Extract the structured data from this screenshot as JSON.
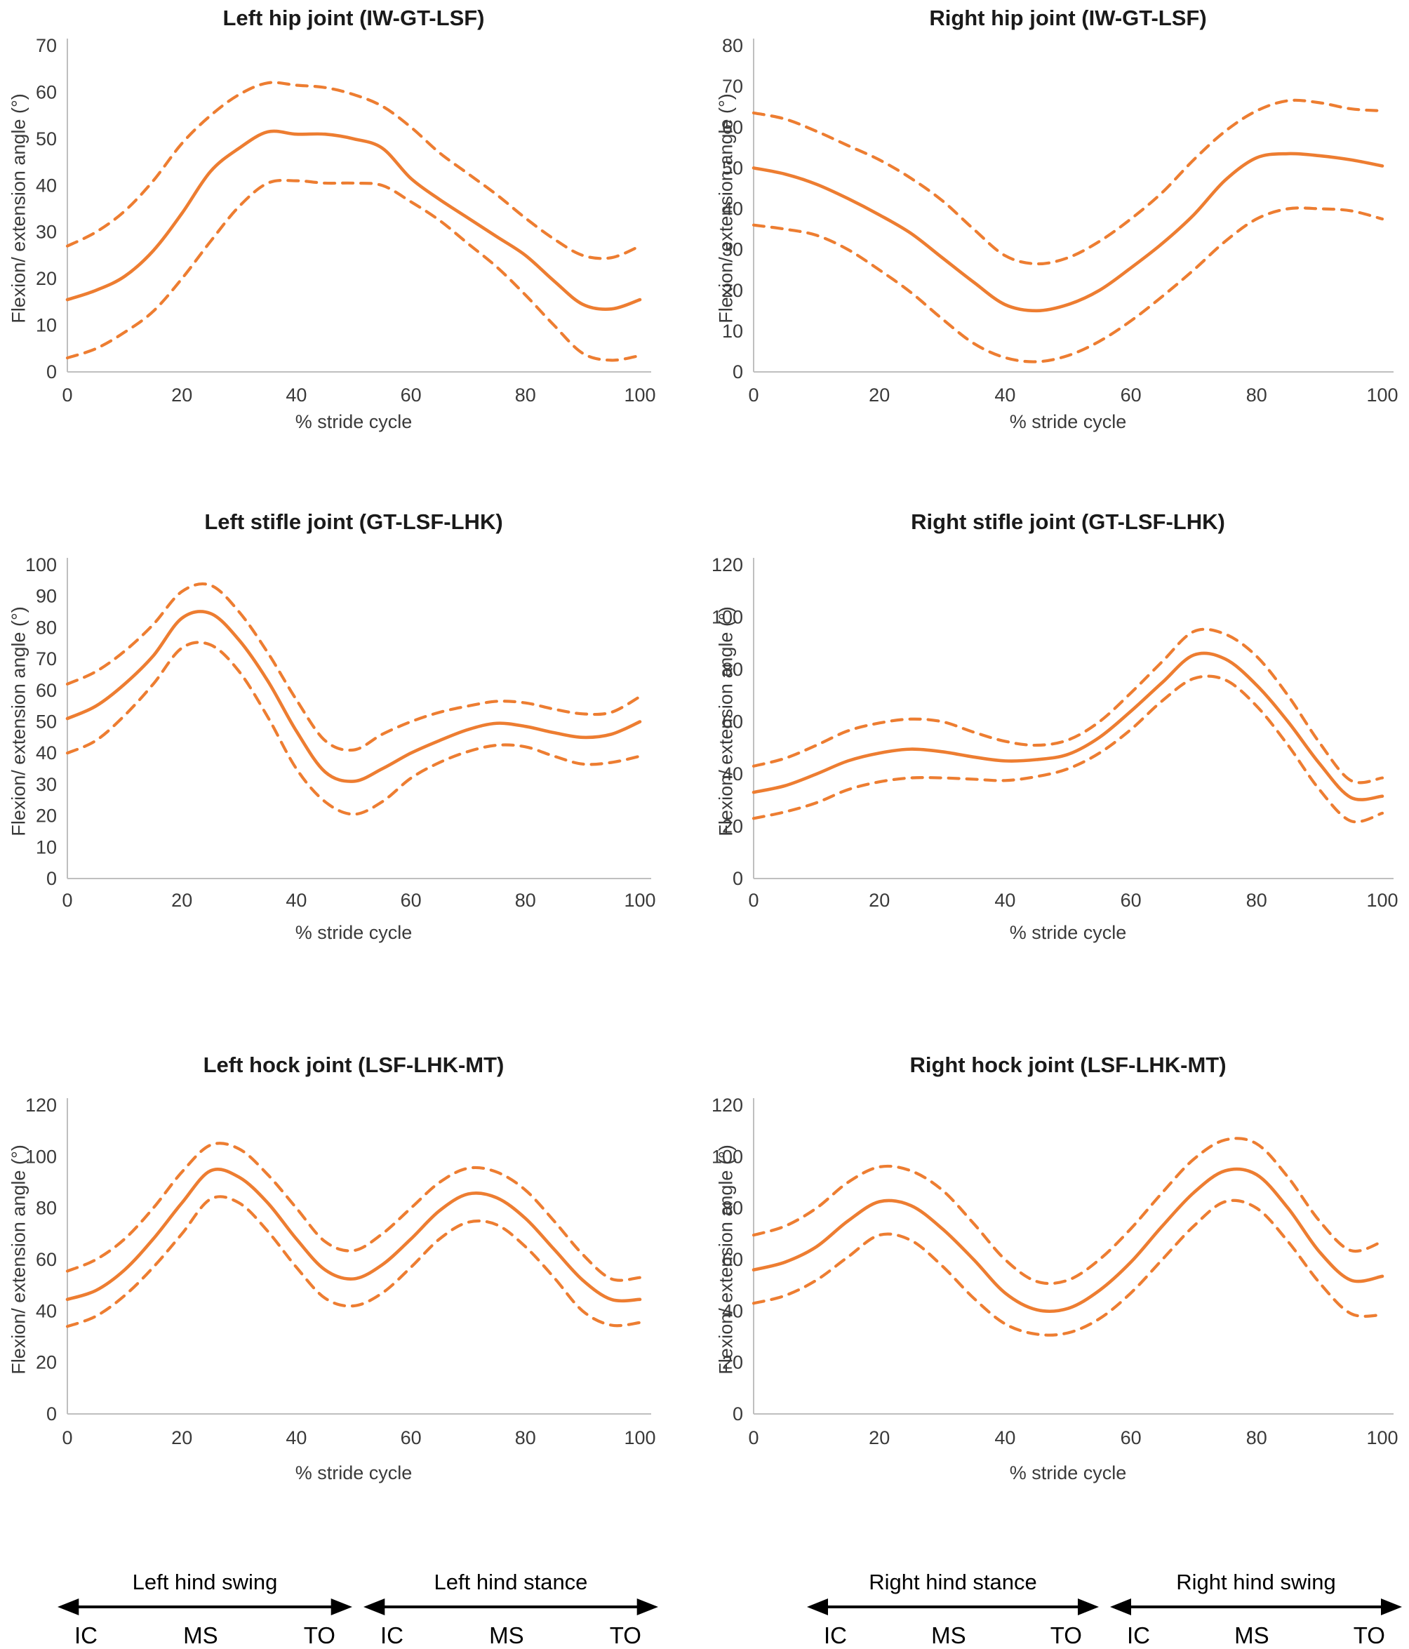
{
  "figure": {
    "xlabel": "% stride cycle",
    "ylabel": "Flexion/ extension angle (°)"
  },
  "colors": {
    "curve": "#ED7D31",
    "axis_line": "#BFBFBF",
    "tick_text": "#3A3A3A",
    "title_text": "#1A1A1A"
  },
  "chart_data": [
    {
      "type": "line",
      "title": "Left hip joint (IW-GT-LSF)",
      "xlabel": "% stride cycle",
      "ylabel": "Flexion/ extension angle (°)",
      "xlim": [
        0,
        100
      ],
      "ylim": [
        0,
        70
      ],
      "xticks": [
        0,
        20,
        40,
        60,
        80,
        100
      ],
      "yticks": [
        0,
        10,
        20,
        30,
        40,
        50,
        60,
        70
      ],
      "grid": false,
      "legend": "none",
      "x": [
        0,
        5,
        10,
        15,
        20,
        25,
        30,
        35,
        40,
        45,
        50,
        55,
        60,
        65,
        70,
        75,
        80,
        85,
        90,
        95,
        100
      ],
      "series": [
        {
          "name": "Mean",
          "style": "solid",
          "values": [
            15.5,
            17.5,
            20.5,
            26,
            34,
            43,
            48,
            51.5,
            51,
            51,
            50,
            48,
            41.5,
            37,
            33,
            29,
            25,
            19.5,
            14.5,
            13.5,
            15.5
          ]
        },
        {
          "name": "Mean + SD",
          "style": "dashed",
          "values": [
            27,
            30,
            34.5,
            41,
            49,
            55,
            59.5,
            62,
            61.5,
            61,
            59.5,
            57,
            52.5,
            47,
            42.5,
            38,
            33,
            28.5,
            25,
            24.5,
            27
          ]
        },
        {
          "name": "Mean − SD",
          "style": "dashed",
          "values": [
            3,
            5,
            8.5,
            13,
            20,
            28,
            35.5,
            40.5,
            41,
            40.5,
            40.5,
            40,
            36.5,
            32.5,
            27.5,
            22.5,
            16.5,
            10,
            4,
            2.5,
            3.5
          ]
        }
      ]
    },
    {
      "type": "line",
      "title": "Right hip joint (IW-GT-LSF)",
      "xlabel": "% stride cycle",
      "ylabel": "Flexion/ extension angle (°)",
      "xlim": [
        0,
        100
      ],
      "ylim": [
        0,
        80
      ],
      "xticks": [
        0,
        20,
        40,
        60,
        80,
        100
      ],
      "yticks": [
        0,
        10,
        20,
        30,
        40,
        50,
        60,
        70,
        80
      ],
      "grid": false,
      "legend": "none",
      "x": [
        0,
        5,
        10,
        15,
        20,
        25,
        30,
        35,
        40,
        45,
        50,
        55,
        60,
        65,
        70,
        75,
        80,
        85,
        90,
        95,
        100
      ],
      "series": [
        {
          "name": "Mean",
          "style": "solid",
          "values": [
            50,
            48.5,
            46,
            42.5,
            38.5,
            34,
            28,
            22,
            16.5,
            15,
            16.5,
            20,
            25.5,
            31.5,
            38.5,
            47,
            52.5,
            53.5,
            53,
            52,
            50.5
          ]
        },
        {
          "name": "Mean + SD",
          "style": "dashed",
          "values": [
            63.5,
            62,
            59,
            55.5,
            52,
            47.5,
            42,
            35,
            28.5,
            26.5,
            28,
            32,
            37.5,
            44,
            52,
            59,
            64,
            66.5,
            66,
            64.5,
            64
          ]
        },
        {
          "name": "Mean − SD",
          "style": "dashed",
          "values": [
            36,
            35,
            33.5,
            30,
            25,
            19.5,
            13,
            7,
            3.5,
            2.5,
            4,
            7.5,
            12.5,
            18.5,
            25,
            32,
            37.5,
            40,
            40,
            39.5,
            37.5
          ]
        }
      ]
    },
    {
      "type": "line",
      "title": "Left stifle joint (GT-LSF-LHK)",
      "xlabel": "% stride cycle",
      "ylabel": "Flexion/ extension angle (°)",
      "xlim": [
        0,
        100
      ],
      "ylim": [
        0,
        100
      ],
      "xticks": [
        0,
        20,
        40,
        60,
        80,
        100
      ],
      "yticks": [
        0,
        10,
        20,
        30,
        40,
        50,
        60,
        70,
        80,
        90,
        100
      ],
      "grid": false,
      "legend": "none",
      "x": [
        0,
        5,
        10,
        15,
        20,
        25,
        30,
        35,
        40,
        45,
        50,
        55,
        60,
        65,
        70,
        75,
        80,
        85,
        90,
        95,
        100
      ],
      "series": [
        {
          "name": "Mean",
          "style": "solid",
          "values": [
            51,
            55,
            62,
            71,
            83,
            84.5,
            76,
            63,
            47,
            34,
            31,
            35,
            40,
            44,
            47.5,
            49.5,
            48.5,
            46.5,
            45,
            46,
            50
          ]
        },
        {
          "name": "Mean + SD",
          "style": "dashed",
          "values": [
            62,
            66,
            72.5,
            81,
            91.5,
            93.5,
            85,
            72,
            57,
            44,
            41,
            46,
            50,
            53,
            55,
            56.5,
            56,
            54,
            52.5,
            53,
            58
          ]
        },
        {
          "name": "Mean − SD",
          "style": "dashed",
          "values": [
            40,
            44,
            52,
            62,
            73.5,
            74.5,
            66,
            51.5,
            35,
            24.5,
            20.5,
            24.5,
            32,
            37,
            40.5,
            42.5,
            42,
            39,
            36.5,
            37,
            39
          ]
        }
      ]
    },
    {
      "type": "line",
      "title": "Right stifle joint (GT-LSF-LHK)",
      "xlabel": "% stride cycle",
      "ylabel": "Flexion/ extension angle (°)",
      "xlim": [
        0,
        100
      ],
      "ylim": [
        0,
        120
      ],
      "xticks": [
        0,
        20,
        40,
        60,
        80,
        100
      ],
      "yticks": [
        0,
        20,
        40,
        60,
        80,
        100,
        120
      ],
      "grid": false,
      "legend": "none",
      "x": [
        0,
        5,
        10,
        15,
        20,
        25,
        30,
        35,
        40,
        45,
        50,
        55,
        60,
        65,
        70,
        75,
        80,
        85,
        90,
        95,
        100
      ],
      "series": [
        {
          "name": "Mean",
          "style": "solid",
          "values": [
            33,
            35.5,
            40,
            45,
            48,
            49.5,
            48.5,
            46.5,
            45,
            45.5,
            47.5,
            54,
            64,
            75,
            85.5,
            84,
            74,
            60,
            44,
            31,
            31.5
          ]
        },
        {
          "name": "Mean + SD",
          "style": "dashed",
          "values": [
            43,
            46,
            51,
            56.5,
            59.5,
            61,
            60,
            56,
            52.5,
            51,
            53,
            60,
            71,
            83,
            94.5,
            93.5,
            85,
            70,
            52,
            37.5,
            38.5
          ]
        },
        {
          "name": "Mean − SD",
          "style": "dashed",
          "values": [
            23,
            25.5,
            29,
            34,
            37,
            38.5,
            38.5,
            38,
            37.5,
            39,
            42,
            48,
            57,
            68,
            76.5,
            76,
            66,
            51,
            34,
            22,
            25
          ]
        }
      ]
    },
    {
      "type": "line",
      "title": "Left hock joint (LSF-LHK-MT)",
      "xlabel": "% stride cycle",
      "ylabel": "Flexion/ extension angle (°)",
      "xlim": [
        0,
        100
      ],
      "ylim": [
        0,
        120
      ],
      "xticks": [
        0,
        20,
        40,
        60,
        80,
        100
      ],
      "yticks": [
        0,
        20,
        40,
        60,
        80,
        100,
        120
      ],
      "grid": false,
      "legend": "none",
      "x": [
        0,
        5,
        10,
        15,
        20,
        25,
        30,
        35,
        40,
        45,
        50,
        55,
        60,
        65,
        70,
        75,
        80,
        85,
        90,
        95,
        100
      ],
      "series": [
        {
          "name": "Mean",
          "style": "solid",
          "values": [
            44.5,
            48,
            56,
            68,
            82,
            94.5,
            92,
            82,
            68,
            56,
            52.5,
            58,
            68,
            79,
            85.5,
            84,
            76,
            64,
            52,
            44.5,
            44.5
          ]
        },
        {
          "name": "Mean + SD",
          "style": "dashed",
          "values": [
            55.5,
            60,
            68,
            80,
            94,
            104.5,
            103,
            93,
            80,
            67,
            63.5,
            70,
            80,
            90,
            95.5,
            94,
            87,
            75,
            62,
            52.5,
            53
          ]
        },
        {
          "name": "Mean − SD",
          "style": "dashed",
          "values": [
            34,
            38,
            46,
            57,
            70,
            83.5,
            82,
            71,
            57,
            45,
            42,
            47,
            57,
            68,
            74.5,
            73.5,
            65,
            53,
            40,
            34.5,
            35.5
          ]
        }
      ]
    },
    {
      "type": "line",
      "title": "Right hock joint (LSF-LHK-MT)",
      "xlabel": "% stride cycle",
      "ylabel": "Flexion/ extension angle (°)",
      "xlim": [
        0,
        100
      ],
      "ylim": [
        0,
        120
      ],
      "xticks": [
        0,
        20,
        40,
        60,
        80,
        100
      ],
      "yticks": [
        0,
        20,
        40,
        60,
        80,
        100,
        120
      ],
      "grid": false,
      "legend": "none",
      "x": [
        0,
        5,
        10,
        15,
        20,
        25,
        30,
        35,
        40,
        45,
        50,
        55,
        60,
        65,
        70,
        75,
        80,
        85,
        90,
        95,
        100
      ],
      "series": [
        {
          "name": "Mean",
          "style": "solid",
          "values": [
            56,
            59,
            65,
            75,
            82.5,
            81,
            72,
            60,
            47,
            40.5,
            41,
            48,
            59,
            73,
            86,
            94.5,
            93,
            80,
            63,
            52,
            53.5
          ]
        },
        {
          "name": "Mean + SD",
          "style": "dashed",
          "values": [
            69.5,
            73,
            80,
            90,
            96,
            94.5,
            87,
            74,
            60,
            51.5,
            52,
            60,
            72,
            86,
            99,
            106.5,
            105,
            92,
            75,
            63.5,
            67
          ]
        },
        {
          "name": "Mean − SD",
          "style": "dashed",
          "values": [
            43,
            46,
            52,
            61,
            69.5,
            67.5,
            57.5,
            45,
            35,
            31,
            31.5,
            37,
            47,
            60,
            73,
            82.5,
            80,
            67,
            51,
            39,
            38.5
          ]
        }
      ]
    }
  ],
  "phase_annotations": {
    "markers": [
      "IC",
      "MS",
      "TO"
    ],
    "groups": [
      {
        "label": "Left hind swing"
      },
      {
        "label": "Left hind stance"
      },
      {
        "label": "Right hind stance"
      },
      {
        "label": "Right hind swing"
      }
    ]
  }
}
